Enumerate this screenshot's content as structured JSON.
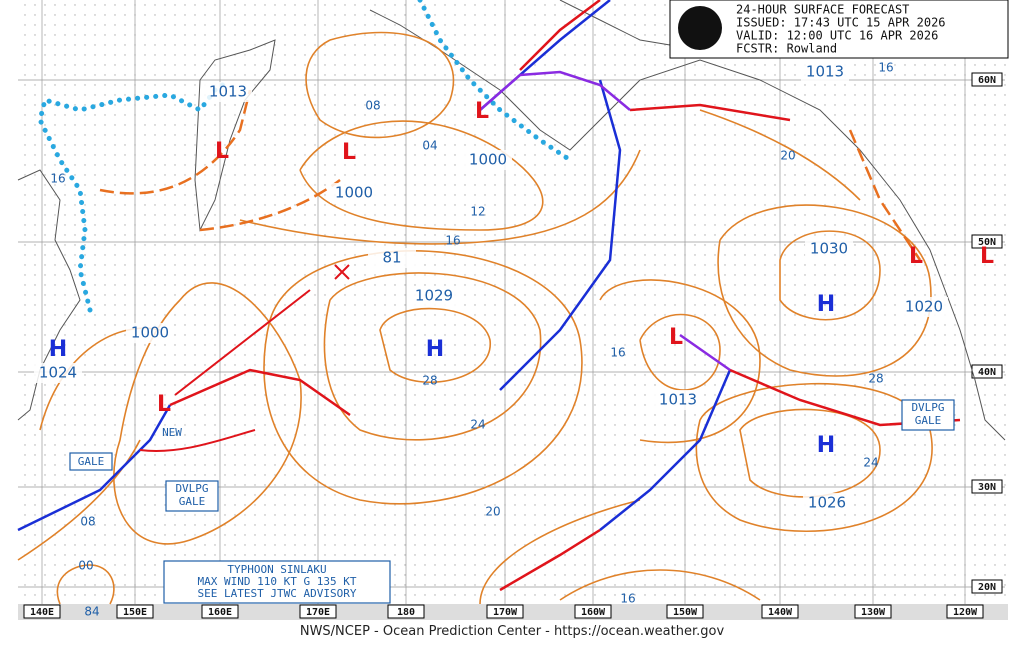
{
  "header": {
    "lines": [
      "24-HOUR SURFACE FORECAST",
      "ISSUED: 17:43 UTC 15 APR 2026",
      "VALID:  12:00 UTC 16 APR 2026",
      "FCSTR:  Rowland"
    ]
  },
  "axis": {
    "lon_labels": [
      "140E",
      "150E",
      "160E",
      "170E",
      "180",
      "170W",
      "160W",
      "150W",
      "140W",
      "130W",
      "120W"
    ],
    "lat_labels": [
      "60N",
      "50N",
      "40N",
      "30N",
      "20N"
    ]
  },
  "pressure_labels": [
    "1013",
    "1013",
    "1013",
    "1000",
    "1000",
    "1000",
    "1029",
    "1030",
    "1020",
    "1024",
    "1026",
    "81"
  ],
  "isobar_labels": [
    "08",
    "04",
    "12",
    "16",
    "20",
    "16",
    "16",
    "28",
    "24",
    "20",
    "16",
    "28",
    "24",
    "08",
    "00",
    "84",
    "16"
  ],
  "centers": [
    "L",
    "L",
    "L",
    "L",
    "L",
    "L",
    "L",
    "H",
    "H",
    "H",
    "H"
  ],
  "notes": {
    "new": "NEW",
    "gale": "GALE",
    "dvlpg_gale_west": [
      "DVLPG",
      "GALE"
    ],
    "dvlpg_gale_east": [
      "DVLPG",
      "GALE"
    ],
    "typhoon": [
      "TYPHOON SINLAKU",
      "MAX WIND 110 KT G 135 KT",
      "SEE LATEST JTWC ADVISORY"
    ]
  },
  "footer": "NWS/NCEP - Ocean Prediction Center - https://ocean.weather.gov"
}
